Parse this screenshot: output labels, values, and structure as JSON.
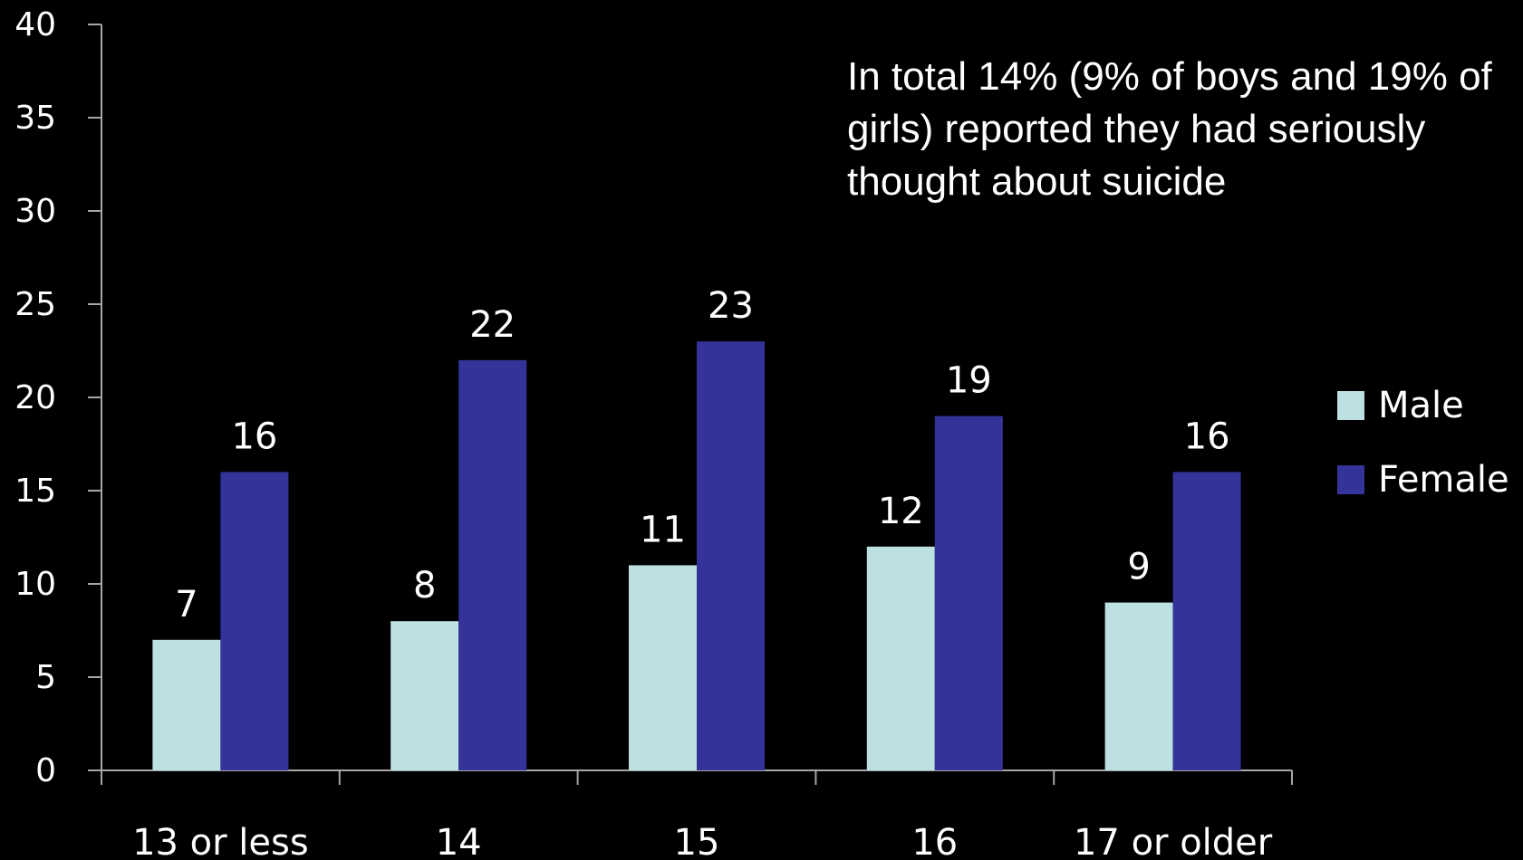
{
  "chart_data": {
    "type": "bar",
    "categories": [
      "13 or less",
      "14",
      "15",
      "16",
      "17 or older"
    ],
    "series": [
      {
        "name": "Male",
        "values": [
          7,
          8,
          11,
          12,
          9
        ],
        "color": "#bde0e2"
      },
      {
        "name": "Female",
        "values": [
          16,
          22,
          23,
          19,
          16
        ],
        "color": "#333399"
      }
    ],
    "ylim": [
      0,
      40
    ],
    "yticks": [
      0,
      5,
      10,
      15,
      20,
      25,
      30,
      35,
      40
    ],
    "legend_position": "right",
    "grid": false,
    "annotation": "In total 14% (9% of boys and 19% of girls) reported they had seriously thought about suicide"
  }
}
